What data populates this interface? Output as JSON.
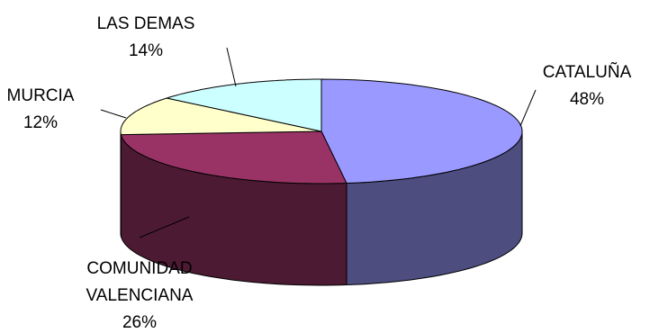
{
  "chart_data": {
    "type": "pie",
    "style": "3d",
    "legend": "none",
    "slices": [
      {
        "label": "CATALUÑA",
        "value": 48,
        "display": "48%",
        "color": "#9999ff"
      },
      {
        "label": "COMUNIDAD VALENCIANA",
        "label_lines": [
          "COMUNIDAD",
          "VALENCIANA"
        ],
        "value": 26,
        "display": "26%",
        "color": "#993366"
      },
      {
        "label": "MURCIA",
        "value": 12,
        "display": "12%",
        "color": "#ffffcc"
      },
      {
        "label": "LAS DEMAS",
        "value": 14,
        "display": "14%",
        "color": "#ccffff"
      }
    ]
  }
}
